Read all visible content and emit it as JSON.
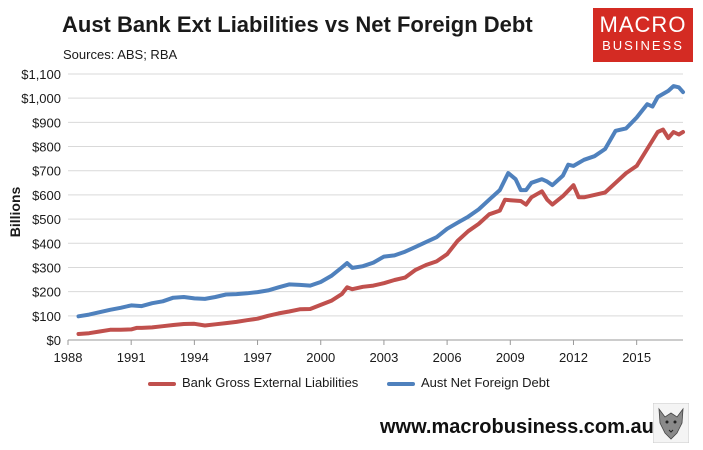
{
  "header": {
    "title": "Aust Bank Ext Liabilities vs Net Foreign Debt",
    "subtitle": "Sources: ABS; RBA"
  },
  "logo": {
    "line1": "MACRO",
    "line2": "BUSINESS",
    "color": "#d42b23"
  },
  "footer": {
    "url": "www.macrobusiness.com.au"
  },
  "chart_data": {
    "type": "line",
    "title": "Aust Bank Ext Liabilities vs Net Foreign Debt",
    "xlabel": "",
    "ylabel": "Billions",
    "xlim": [
      1988,
      2017.2
    ],
    "ylim": [
      0,
      1100
    ],
    "x_ticks": [
      "1988",
      "1991",
      "1994",
      "1997",
      "2000",
      "2003",
      "2006",
      "2009",
      "2012",
      "2015"
    ],
    "y_ticks": [
      "$0",
      "$100",
      "$200",
      "$300",
      "$400",
      "$500",
      "$600",
      "$700",
      "$800",
      "$900",
      "$1,000",
      "$1,100"
    ],
    "grid": "horizontal",
    "legend": "bottom",
    "series": [
      {
        "name": "Bank Gross External Liabilities",
        "color": "#c0504d",
        "points": [
          [
            1988.5,
            25
          ],
          [
            1989,
            28
          ],
          [
            1989.5,
            35
          ],
          [
            1990,
            42
          ],
          [
            1990.5,
            42
          ],
          [
            1991,
            44
          ],
          [
            1991.25,
            50
          ],
          [
            1991.5,
            50
          ],
          [
            1992,
            52
          ],
          [
            1992.5,
            57
          ],
          [
            1993,
            62
          ],
          [
            1993.5,
            66
          ],
          [
            1994,
            67
          ],
          [
            1994.5,
            60
          ],
          [
            1995,
            65
          ],
          [
            1995.5,
            70
          ],
          [
            1996,
            75
          ],
          [
            1996.5,
            82
          ],
          [
            1997,
            88
          ],
          [
            1997.5,
            100
          ],
          [
            1998,
            110
          ],
          [
            1998.5,
            118
          ],
          [
            1999,
            127
          ],
          [
            1999.5,
            128
          ],
          [
            2000,
            145
          ],
          [
            2000.5,
            162
          ],
          [
            2001,
            190
          ],
          [
            2001.25,
            218
          ],
          [
            2001.5,
            210
          ],
          [
            2002,
            220
          ],
          [
            2002.5,
            225
          ],
          [
            2003,
            235
          ],
          [
            2003.5,
            248
          ],
          [
            2004,
            258
          ],
          [
            2004.5,
            290
          ],
          [
            2005,
            310
          ],
          [
            2005.5,
            325
          ],
          [
            2006,
            355
          ],
          [
            2006.5,
            410
          ],
          [
            2007,
            450
          ],
          [
            2007.5,
            480
          ],
          [
            2008,
            520
          ],
          [
            2008.5,
            535
          ],
          [
            2008.75,
            580
          ],
          [
            2009,
            578
          ],
          [
            2009.5,
            575
          ],
          [
            2009.75,
            560
          ],
          [
            2010,
            590
          ],
          [
            2010.5,
            615
          ],
          [
            2010.75,
            580
          ],
          [
            2011,
            560
          ],
          [
            2011.5,
            595
          ],
          [
            2012,
            640
          ],
          [
            2012.25,
            590
          ],
          [
            2012.5,
            590
          ],
          [
            2013,
            600
          ],
          [
            2013.5,
            610
          ],
          [
            2014,
            650
          ],
          [
            2014.5,
            690
          ],
          [
            2015,
            720
          ],
          [
            2015.5,
            790
          ],
          [
            2016,
            860
          ],
          [
            2016.25,
            870
          ],
          [
            2016.5,
            835
          ],
          [
            2016.75,
            860
          ],
          [
            2017,
            850
          ],
          [
            2017.2,
            860
          ]
        ]
      },
      {
        "name": "Aust Net Foreign Debt",
        "color": "#4f81bd",
        "points": [
          [
            1988.5,
            98
          ],
          [
            1989,
            105
          ],
          [
            1989.5,
            115
          ],
          [
            1990,
            125
          ],
          [
            1990.5,
            133
          ],
          [
            1991,
            143
          ],
          [
            1991.5,
            140
          ],
          [
            1992,
            152
          ],
          [
            1992.5,
            160
          ],
          [
            1993,
            175
          ],
          [
            1993.5,
            178
          ],
          [
            1994,
            172
          ],
          [
            1994.5,
            170
          ],
          [
            1995,
            178
          ],
          [
            1995.5,
            188
          ],
          [
            1996,
            190
          ],
          [
            1996.5,
            193
          ],
          [
            1997,
            198
          ],
          [
            1997.5,
            205
          ],
          [
            1998,
            218
          ],
          [
            1998.5,
            230
          ],
          [
            1999,
            228
          ],
          [
            1999.5,
            225
          ],
          [
            2000,
            240
          ],
          [
            2000.5,
            265
          ],
          [
            2001,
            300
          ],
          [
            2001.25,
            318
          ],
          [
            2001.5,
            298
          ],
          [
            2002,
            305
          ],
          [
            2002.5,
            320
          ],
          [
            2003,
            345
          ],
          [
            2003.5,
            350
          ],
          [
            2004,
            365
          ],
          [
            2004.5,
            385
          ],
          [
            2005,
            405
          ],
          [
            2005.5,
            425
          ],
          [
            2006,
            460
          ],
          [
            2006.5,
            485
          ],
          [
            2007,
            510
          ],
          [
            2007.5,
            540
          ],
          [
            2008,
            580
          ],
          [
            2008.5,
            620
          ],
          [
            2008.9,
            690
          ],
          [
            2009.25,
            665
          ],
          [
            2009.5,
            620
          ],
          [
            2009.75,
            620
          ],
          [
            2010,
            650
          ],
          [
            2010.5,
            665
          ],
          [
            2010.75,
            655
          ],
          [
            2011,
            640
          ],
          [
            2011.5,
            680
          ],
          [
            2011.75,
            725
          ],
          [
            2012,
            720
          ],
          [
            2012.5,
            745
          ],
          [
            2013,
            760
          ],
          [
            2013.5,
            790
          ],
          [
            2014,
            865
          ],
          [
            2014.5,
            875
          ],
          [
            2015,
            920
          ],
          [
            2015.5,
            975
          ],
          [
            2015.75,
            965
          ],
          [
            2016,
            1005
          ],
          [
            2016.5,
            1030
          ],
          [
            2016.75,
            1050
          ],
          [
            2017,
            1045
          ],
          [
            2017.2,
            1025
          ]
        ]
      }
    ]
  }
}
